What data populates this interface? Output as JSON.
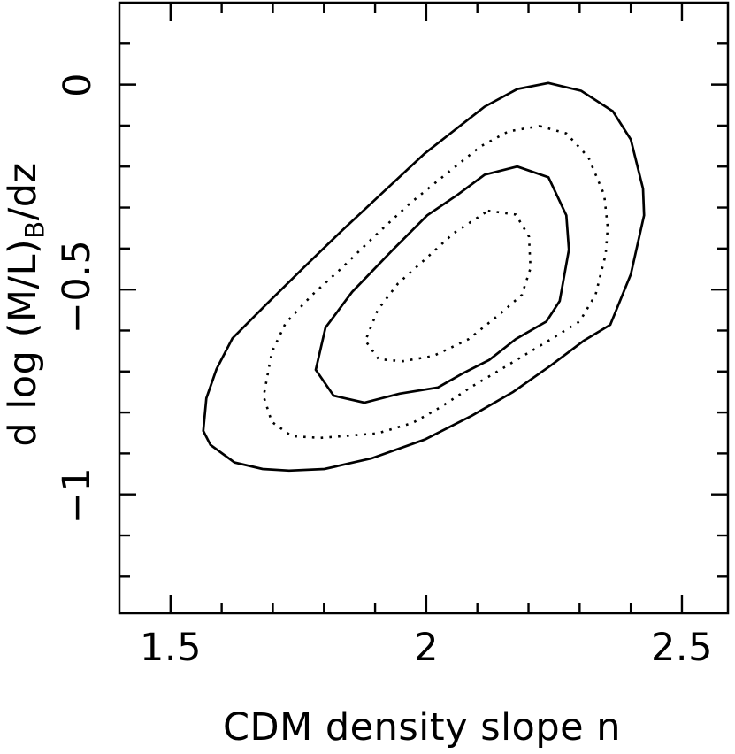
{
  "figure": {
    "background_color": "#ffffff",
    "ink_color": "#000000"
  },
  "axes": {
    "x": {
      "title": "CDM density slope n",
      "tick_labels": [
        "1.5",
        "2",
        "2.5"
      ]
    },
    "y": {
      "title_pre": "d log (M/L)",
      "title_sub": "B",
      "title_post": "/dz",
      "tick_labels": [
        "0",
        "−0.5",
        "−1"
      ]
    }
  },
  "chart_data": {
    "type": "contour",
    "title": "",
    "xlabel": "CDM density slope n",
    "ylabel": "d log (M/L)_B/dz",
    "xlim": [
      1.4,
      2.59
    ],
    "ylim": [
      -1.29,
      0.2
    ],
    "grid": false,
    "x_major_ticks": [
      1.5,
      2.0,
      2.5
    ],
    "x_minor_ticks": [
      1.6,
      1.7,
      1.8,
      1.9,
      2.1,
      2.2,
      2.3,
      2.4
    ],
    "y_major_ticks": [
      0,
      -0.5,
      -1.0
    ],
    "y_minor_ticks": [
      0.1,
      -0.1,
      -0.2,
      -0.3,
      -0.4,
      -0.6,
      -0.7,
      -0.8,
      -0.9,
      -1.1,
      -1.2
    ],
    "contours": [
      {
        "name": "outer-solid-contour",
        "style": "solid",
        "points": [
          [
            2.239,
            0.004
          ],
          [
            2.303,
            -0.015
          ],
          [
            2.365,
            -0.065
          ],
          [
            2.4,
            -0.134
          ],
          [
            2.424,
            -0.254
          ],
          [
            2.426,
            -0.319
          ],
          [
            2.4,
            -0.463
          ],
          [
            2.36,
            -0.586
          ],
          [
            2.308,
            -0.625
          ],
          [
            2.244,
            -0.685
          ],
          [
            2.17,
            -0.75
          ],
          [
            2.089,
            -0.808
          ],
          [
            1.997,
            -0.866
          ],
          [
            1.893,
            -0.912
          ],
          [
            1.801,
            -0.938
          ],
          [
            1.732,
            -0.942
          ],
          [
            1.68,
            -0.938
          ],
          [
            1.625,
            -0.922
          ],
          [
            1.578,
            -0.879
          ],
          [
            1.564,
            -0.845
          ],
          [
            1.57,
            -0.765
          ],
          [
            1.59,
            -0.694
          ],
          [
            1.621,
            -0.619
          ],
          [
            1.685,
            -0.539
          ],
          [
            1.755,
            -0.453
          ],
          [
            1.832,
            -0.36
          ],
          [
            1.91,
            -0.269
          ],
          [
            1.997,
            -0.168
          ],
          [
            2.114,
            -0.054
          ],
          [
            2.178,
            -0.011
          ]
        ]
      },
      {
        "name": "second-dotted-contour",
        "style": "dotted",
        "points": [
          [
            2.222,
            -0.101
          ],
          [
            2.274,
            -0.119
          ],
          [
            2.317,
            -0.177
          ],
          [
            2.348,
            -0.269
          ],
          [
            2.355,
            -0.349
          ],
          [
            2.351,
            -0.414
          ],
          [
            2.331,
            -0.513
          ],
          [
            2.3,
            -0.578
          ],
          [
            2.239,
            -0.625
          ],
          [
            2.187,
            -0.664
          ],
          [
            2.139,
            -0.7
          ],
          [
            2.089,
            -0.737
          ],
          [
            2.028,
            -0.787
          ],
          [
            1.974,
            -0.825
          ],
          [
            1.905,
            -0.851
          ],
          [
            1.836,
            -0.858
          ],
          [
            1.793,
            -0.862
          ],
          [
            1.737,
            -0.858
          ],
          [
            1.698,
            -0.823
          ],
          [
            1.682,
            -0.761
          ],
          [
            1.698,
            -0.653
          ],
          [
            1.725,
            -0.582
          ],
          [
            1.777,
            -0.513
          ],
          [
            1.836,
            -0.446
          ],
          [
            1.898,
            -0.371
          ],
          [
            1.967,
            -0.291
          ],
          [
            2.037,
            -0.22
          ],
          [
            2.106,
            -0.151
          ],
          [
            2.161,
            -0.114
          ]
        ]
      },
      {
        "name": "inner-solid-contour",
        "style": "solid",
        "points": [
          [
            2.178,
            -0.2
          ],
          [
            2.239,
            -0.226
          ],
          [
            2.274,
            -0.319
          ],
          [
            2.279,
            -0.403
          ],
          [
            2.261,
            -0.528
          ],
          [
            2.235,
            -0.578
          ],
          [
            2.175,
            -0.621
          ],
          [
            2.123,
            -0.672
          ],
          [
            2.071,
            -0.705
          ],
          [
            2.023,
            -0.739
          ],
          [
            1.948,
            -0.754
          ],
          [
            1.879,
            -0.776
          ],
          [
            1.819,
            -0.759
          ],
          [
            1.784,
            -0.696
          ],
          [
            1.803,
            -0.593
          ],
          [
            1.855,
            -0.506
          ],
          [
            1.933,
            -0.405
          ],
          [
            2.002,
            -0.319
          ],
          [
            2.061,
            -0.269
          ],
          [
            2.114,
            -0.22
          ]
        ]
      },
      {
        "name": "innermost-dotted-contour",
        "style": "dotted",
        "points": [
          [
            2.121,
            -0.308
          ],
          [
            2.175,
            -0.317
          ],
          [
            2.201,
            -0.371
          ],
          [
            2.204,
            -0.448
          ],
          [
            2.187,
            -0.513
          ],
          [
            2.144,
            -0.56
          ],
          [
            2.083,
            -0.621
          ],
          [
            2.014,
            -0.662
          ],
          [
            1.954,
            -0.675
          ],
          [
            1.907,
            -0.67
          ],
          [
            1.881,
            -0.625
          ],
          [
            1.905,
            -0.55
          ],
          [
            1.945,
            -0.485
          ],
          [
            1.997,
            -0.427
          ],
          [
            2.054,
            -0.362
          ]
        ]
      }
    ]
  }
}
